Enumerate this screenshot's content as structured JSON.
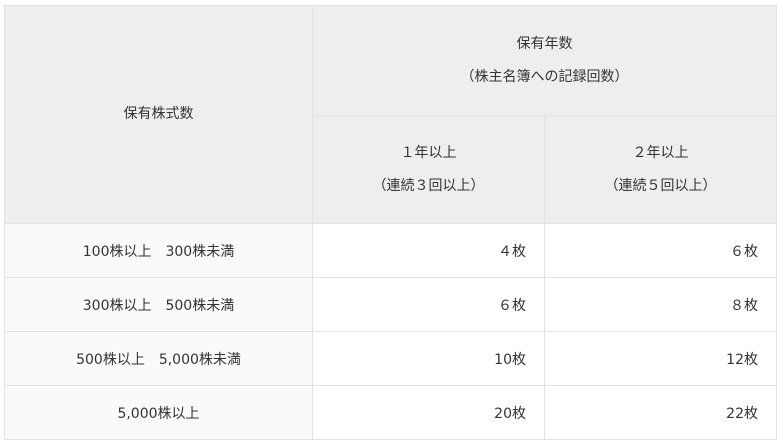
{
  "table": {
    "header": {
      "shares_held": "保有株式数",
      "years_held": "保有年数",
      "years_held_note": "（株主名簿への記録回数）",
      "col1": "１年以上",
      "col1_note": "（連続３回以上）",
      "col2": "２年以上",
      "col2_note": "（連続５回以上）"
    },
    "rows": [
      {
        "label": "100株以上　300株未満",
        "col1": "４枚",
        "col2": "６枚"
      },
      {
        "label": "300株以上　500株未満",
        "col1": "６枚",
        "col2": "８枚"
      },
      {
        "label": "500株以上　5,000株未満",
        "col1": "10枚",
        "col2": "12枚"
      },
      {
        "label": "5,000株以上",
        "col1": "20枚",
        "col2": "22枚"
      }
    ]
  }
}
